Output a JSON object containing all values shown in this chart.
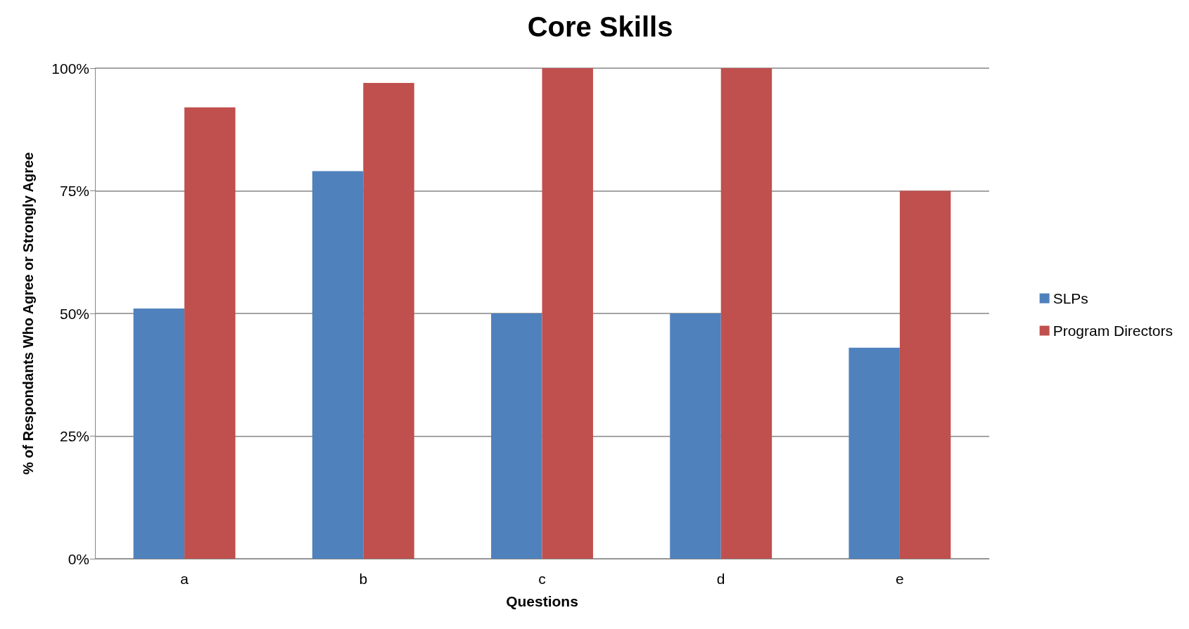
{
  "chart_data": {
    "type": "bar",
    "title": "Core Skills",
    "xlabel": "Questions",
    "ylabel": "% of Respondants Who Agree or Strongly Agree",
    "categories": [
      "a",
      "b",
      "c",
      "d",
      "e"
    ],
    "series": [
      {
        "name": "SLPs",
        "color": "#4f81bd",
        "values": [
          51,
          79,
          50,
          50,
          43
        ]
      },
      {
        "name": "Program Directors",
        "color": "#c0504d",
        "values": [
          92,
          97,
          100,
          100,
          75
        ]
      }
    ],
    "ylim": [
      0,
      100
    ],
    "yticks": [
      {
        "value": 0,
        "label": "0%"
      },
      {
        "value": 25,
        "label": "25%"
      },
      {
        "value": 50,
        "label": "50%"
      },
      {
        "value": 75,
        "label": "75%"
      },
      {
        "value": 100,
        "label": "100%"
      }
    ],
    "grid": "y",
    "legend": "right"
  }
}
